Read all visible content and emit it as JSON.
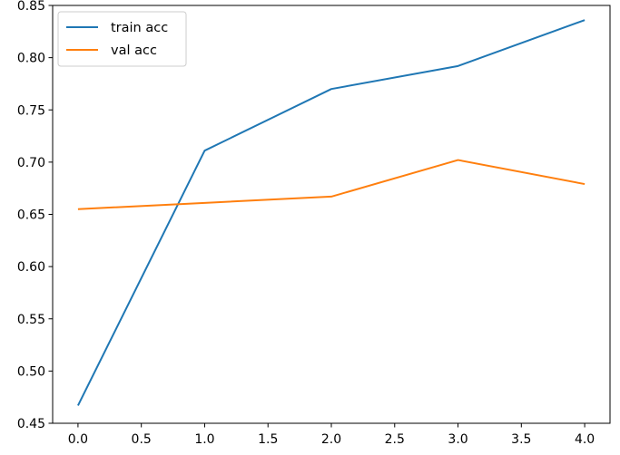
{
  "chart_data": {
    "type": "line",
    "title": "",
    "xlabel": "",
    "ylabel": "",
    "x": [
      0,
      1,
      2,
      3,
      4
    ],
    "xlim": [
      -0.2,
      4.2
    ],
    "ylim": [
      0.45,
      0.85
    ],
    "x_ticks": [
      0.0,
      0.5,
      1.0,
      1.5,
      2.0,
      2.5,
      3.0,
      3.5,
      4.0
    ],
    "x_tick_labels": [
      "0.0",
      "0.5",
      "1.0",
      "1.5",
      "2.0",
      "2.5",
      "3.0",
      "3.5",
      "4.0"
    ],
    "y_ticks": [
      0.45,
      0.5,
      0.55,
      0.6,
      0.65,
      0.7,
      0.75,
      0.8,
      0.85
    ],
    "y_tick_labels": [
      "0.45",
      "0.50",
      "0.55",
      "0.60",
      "0.65",
      "0.70",
      "0.75",
      "0.80",
      "0.85"
    ],
    "grid": false,
    "legend_position": "top-left",
    "series": [
      {
        "name": "train acc",
        "color": "#1f77b4",
        "values": [
          0.467,
          0.711,
          0.77,
          0.792,
          0.836
        ]
      },
      {
        "name": "val acc",
        "color": "#ff7f0e",
        "values": [
          0.655,
          0.661,
          0.667,
          0.702,
          0.679
        ]
      }
    ]
  }
}
